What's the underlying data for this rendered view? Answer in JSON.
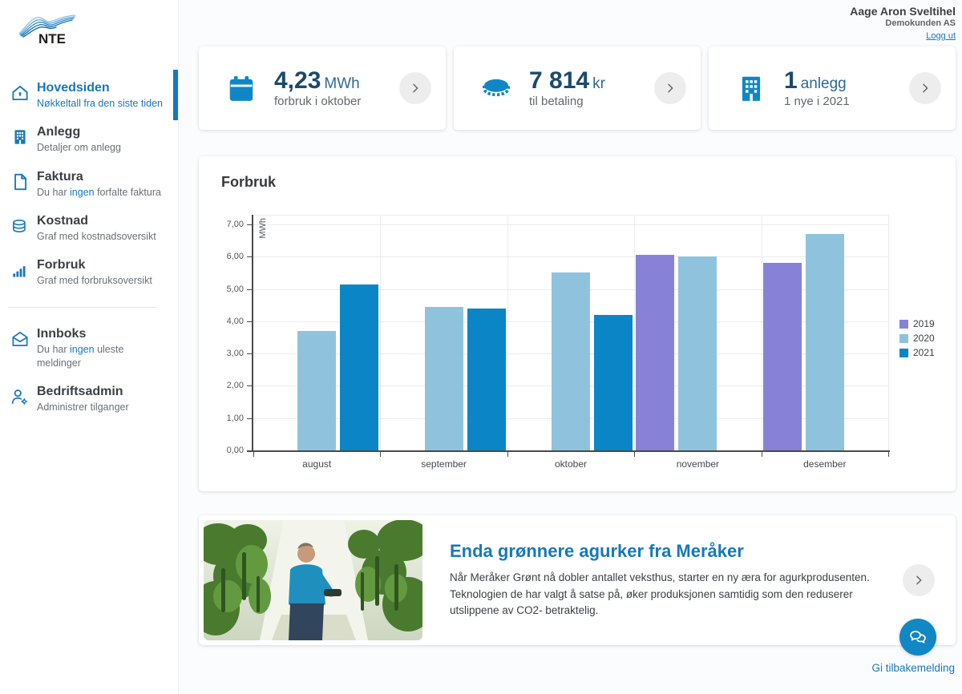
{
  "brand": {
    "name": "NTE"
  },
  "header": {
    "user_name": "Aage Aron Sveltihel",
    "company": "Demokunden AS",
    "logout": "Logg ut"
  },
  "sidebar": {
    "items": [
      {
        "title": "Hovedsiden",
        "sub_prefix": "Nøkkeltall fra den siste tiden",
        "sub_link": "",
        "sub_suffix": "",
        "active": true
      },
      {
        "title": "Anlegg",
        "sub_prefix": "Detaljer om anlegg",
        "sub_link": "",
        "sub_suffix": "",
        "active": false
      },
      {
        "title": "Faktura",
        "sub_prefix": "Du har ",
        "sub_link": "ingen",
        "sub_suffix": " forfalte faktura",
        "active": false
      },
      {
        "title": "Kostnad",
        "sub_prefix": "Graf med kostnadsoversikt",
        "sub_link": "",
        "sub_suffix": "",
        "active": false
      },
      {
        "title": "Forbruk",
        "sub_prefix": "Graf med forbruksoversikt",
        "sub_link": "",
        "sub_suffix": "",
        "active": false
      },
      {
        "title": "Innboks",
        "sub_prefix": "Du har ",
        "sub_link": "ingen",
        "sub_suffix": " uleste meldinger",
        "active": false
      },
      {
        "title": "Bedriftsadmin",
        "sub_prefix": "Administrer tilganger",
        "sub_link": "",
        "sub_suffix": "",
        "active": false
      }
    ]
  },
  "cards": [
    {
      "icon": "calendar-icon",
      "value": "4,23",
      "unit": "MWh",
      "subtitle": "forbruk i oktober"
    },
    {
      "icon": "coin-icon",
      "value": "7 814",
      "unit": "kr",
      "subtitle": "til betaling"
    },
    {
      "icon": "building-icon",
      "value": "1",
      "unit": "anlegg",
      "subtitle": "1 nye i 2021"
    }
  ],
  "chart_data": {
    "type": "bar",
    "title": "Forbruk",
    "ylabel": "MWh",
    "categories": [
      "august",
      "september",
      "oktober",
      "november",
      "desember"
    ],
    "series": [
      {
        "name": "2019",
        "color": "#8781d8",
        "values": [
          null,
          null,
          null,
          6.05,
          5.8
        ]
      },
      {
        "name": "2020",
        "color": "#8fc3dd",
        "values": [
          3.7,
          4.45,
          5.5,
          6.0,
          6.7
        ]
      },
      {
        "name": "2021",
        "color": "#0a86c6",
        "values": [
          5.15,
          4.4,
          4.2,
          null,
          null
        ]
      }
    ],
    "y_ticks": [
      "0,00",
      "1,00",
      "2,00",
      "3,00",
      "4,00",
      "5,00",
      "6,00",
      "7,00"
    ],
    "ylim": [
      0,
      7.3
    ],
    "grid": true,
    "legend_position": "right"
  },
  "news": {
    "title": "Enda grønnere agurker fra Meråker",
    "body": "Når Meråker Grønt nå dobler antallet veksthus, starter en ny æra for agurkprodusenten. Teknologien de har valgt å satse på, øker produksjonen samtidig som den reduserer utslippene av CO2- betraktelig."
  },
  "feedback": {
    "label": "Gi tilbakemelding"
  },
  "colors": {
    "brand_blue": "#1878ba",
    "icon_blue": "#0f87c5",
    "value_navy": "#1b4a6e",
    "series_2019": "#8781d8",
    "series_2020": "#8fc3dd",
    "series_2021": "#0a86c6"
  }
}
